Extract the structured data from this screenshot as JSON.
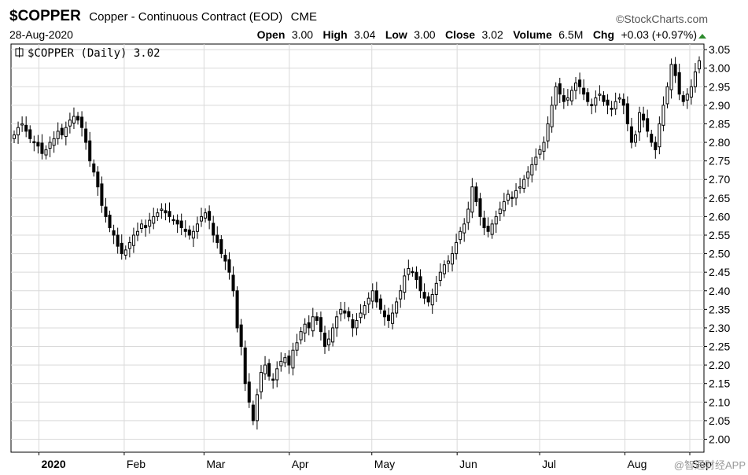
{
  "header": {
    "symbol": "$COPPER",
    "name": "Copper - Continuous Contract (EOD)",
    "exchange": "CME",
    "brand": "©StockCharts.com",
    "date": "28-Aug-2020",
    "open_label": "Open",
    "open_value": "3.00",
    "high_label": "High",
    "high_value": "3.04",
    "low_label": "Low",
    "low_value": "3.00",
    "close_label": "Close",
    "close_value": "3.02",
    "volume_label": "Volume",
    "volume_value": "6.5M",
    "chg_label": "Chg",
    "chg_value": "+0.03 (+0.97%)"
  },
  "legend": {
    "label": "$COPPER (Daily) 3.02"
  },
  "watermark": "@智通财经APP",
  "colors": {
    "candle": "#000000",
    "up_fill": "#ffffff",
    "grid": "#d9d9d9",
    "up_arrow": "#2e8b2e"
  },
  "chart_data": {
    "type": "candlestick",
    "x_labels": [
      "2020",
      "Feb",
      "Mar",
      "Apr",
      "May",
      "Jun",
      "Jul",
      "Aug",
      "Sep"
    ],
    "y_ticks": [
      "3.05",
      "3.00",
      "2.95",
      "2.90",
      "2.85",
      "2.80",
      "2.75",
      "2.70",
      "2.65",
      "2.60",
      "2.55",
      "2.50",
      "2.45",
      "2.40",
      "2.35",
      "2.30",
      "2.25",
      "2.20",
      "2.15",
      "2.10",
      "2.05",
      "2.00"
    ],
    "ylim": [
      1.965,
      3.065
    ],
    "y_axis_side": "right",
    "grid": true,
    "start_date": "2019-12-23",
    "end_date": "2020-08-28",
    "closes": [
      2.82,
      2.84,
      2.85,
      2.83,
      2.81,
      2.8,
      2.79,
      2.77,
      2.78,
      2.8,
      2.81,
      2.83,
      2.82,
      2.84,
      2.86,
      2.87,
      2.86,
      2.84,
      2.8,
      2.75,
      2.72,
      2.68,
      2.63,
      2.6,
      2.57,
      2.55,
      2.52,
      2.5,
      2.51,
      2.53,
      2.55,
      2.56,
      2.58,
      2.57,
      2.59,
      2.6,
      2.61,
      2.62,
      2.61,
      2.6,
      2.59,
      2.58,
      2.57,
      2.56,
      2.55,
      2.56,
      2.58,
      2.6,
      2.61,
      2.59,
      2.55,
      2.53,
      2.5,
      2.48,
      2.45,
      2.4,
      2.3,
      2.25,
      2.15,
      2.1,
      2.05,
      2.12,
      2.18,
      2.2,
      2.17,
      2.16,
      2.19,
      2.21,
      2.22,
      2.2,
      2.24,
      2.26,
      2.29,
      2.31,
      2.3,
      2.33,
      2.32,
      2.29,
      2.25,
      2.27,
      2.3,
      2.33,
      2.35,
      2.34,
      2.33,
      2.3,
      2.32,
      2.34,
      2.36,
      2.38,
      2.4,
      2.37,
      2.35,
      2.33,
      2.32,
      2.34,
      2.37,
      2.4,
      2.44,
      2.46,
      2.45,
      2.43,
      2.4,
      2.38,
      2.37,
      2.39,
      2.42,
      2.45,
      2.47,
      2.48,
      2.5,
      2.53,
      2.56,
      2.58,
      2.62,
      2.68,
      2.64,
      2.6,
      2.57,
      2.56,
      2.58,
      2.6,
      2.62,
      2.64,
      2.66,
      2.65,
      2.67,
      2.68,
      2.7,
      2.72,
      2.74,
      2.76,
      2.78,
      2.8,
      2.85,
      2.9,
      2.95,
      2.93,
      2.91,
      2.92,
      2.94,
      2.96,
      2.95,
      2.93,
      2.91,
      2.9,
      2.92,
      2.93,
      2.91,
      2.9,
      2.89,
      2.91,
      2.92,
      2.9,
      2.85,
      2.8,
      2.82,
      2.88,
      2.86,
      2.83,
      2.8,
      2.78,
      2.85,
      2.9,
      2.95,
      3.01,
      2.98,
      2.93,
      2.91,
      2.93,
      2.95,
      2.99,
      3.02
    ]
  }
}
